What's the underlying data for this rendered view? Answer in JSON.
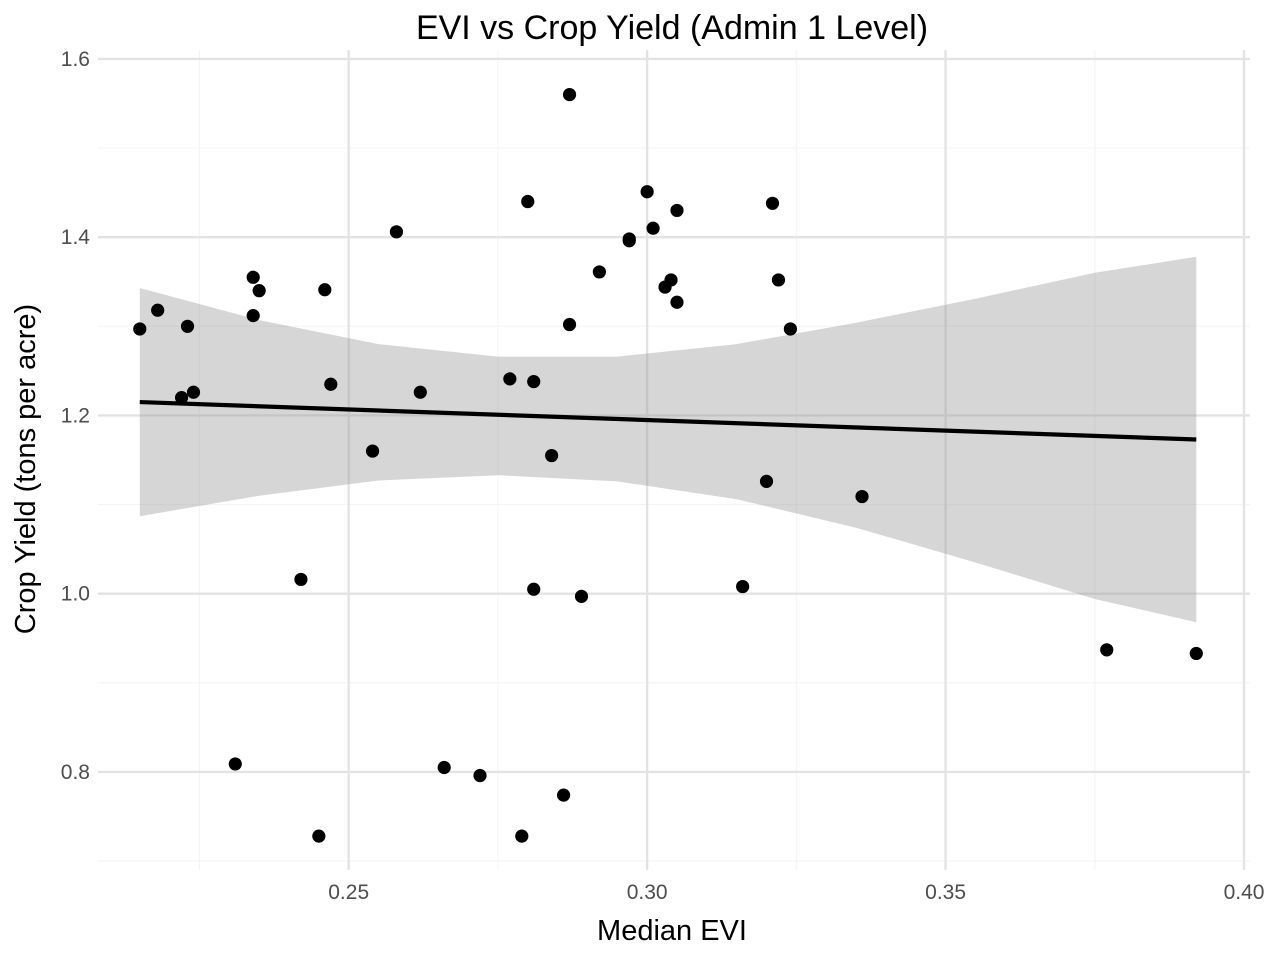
{
  "chart_data": {
    "type": "scatter",
    "title": "EVI vs Crop Yield (Admin 1 Level)",
    "xlabel": "Median EVI",
    "ylabel": "Crop Yield (tons per acre)",
    "xlim": [
      0.208,
      0.401
    ],
    "ylim": [
      0.69,
      1.61
    ],
    "x_ticks": [
      0.25,
      0.3,
      0.35,
      0.4
    ],
    "x_tick_labels": [
      "0.25",
      "0.30",
      "0.35",
      "0.40"
    ],
    "y_ticks": [
      0.8,
      1.0,
      1.2,
      1.4,
      1.6
    ],
    "y_tick_labels": [
      "0.8",
      "1.0",
      "1.2",
      "1.4",
      "1.6"
    ],
    "grid": true,
    "legend": "none",
    "points": [
      {
        "x": 0.215,
        "y": 1.297
      },
      {
        "x": 0.218,
        "y": 1.318
      },
      {
        "x": 0.223,
        "y": 1.3
      },
      {
        "x": 0.222,
        "y": 1.22
      },
      {
        "x": 0.224,
        "y": 1.226
      },
      {
        "x": 0.231,
        "y": 0.809
      },
      {
        "x": 0.234,
        "y": 1.355
      },
      {
        "x": 0.235,
        "y": 1.34
      },
      {
        "x": 0.234,
        "y": 1.312
      },
      {
        "x": 0.242,
        "y": 1.016
      },
      {
        "x": 0.245,
        "y": 0.728
      },
      {
        "x": 0.246,
        "y": 1.341
      },
      {
        "x": 0.247,
        "y": 1.235
      },
      {
        "x": 0.254,
        "y": 1.16
      },
      {
        "x": 0.258,
        "y": 1.406
      },
      {
        "x": 0.262,
        "y": 1.226
      },
      {
        "x": 0.266,
        "y": 0.805
      },
      {
        "x": 0.272,
        "y": 0.796
      },
      {
        "x": 0.277,
        "y": 1.241
      },
      {
        "x": 0.279,
        "y": 0.728
      },
      {
        "x": 0.28,
        "y": 1.44
      },
      {
        "x": 0.281,
        "y": 1.005
      },
      {
        "x": 0.281,
        "y": 1.238
      },
      {
        "x": 0.284,
        "y": 1.155
      },
      {
        "x": 0.286,
        "y": 0.774
      },
      {
        "x": 0.287,
        "y": 1.56
      },
      {
        "x": 0.287,
        "y": 1.302
      },
      {
        "x": 0.289,
        "y": 0.997
      },
      {
        "x": 0.292,
        "y": 1.361
      },
      {
        "x": 0.297,
        "y": 1.396
      },
      {
        "x": 0.297,
        "y": 1.398
      },
      {
        "x": 0.3,
        "y": 1.451
      },
      {
        "x": 0.301,
        "y": 1.41
      },
      {
        "x": 0.303,
        "y": 1.344
      },
      {
        "x": 0.304,
        "y": 1.352
      },
      {
        "x": 0.305,
        "y": 1.43
      },
      {
        "x": 0.305,
        "y": 1.327
      },
      {
        "x": 0.316,
        "y": 1.008
      },
      {
        "x": 0.32,
        "y": 1.126
      },
      {
        "x": 0.321,
        "y": 1.438
      },
      {
        "x": 0.322,
        "y": 1.352
      },
      {
        "x": 0.324,
        "y": 1.297
      },
      {
        "x": 0.336,
        "y": 1.109
      },
      {
        "x": 0.377,
        "y": 0.937
      },
      {
        "x": 0.392,
        "y": 0.933
      }
    ],
    "regression": {
      "x_start": 0.215,
      "x_end": 0.392,
      "y_start": 1.215,
      "y_end": 1.173
    },
    "confidence_band": [
      {
        "x": 0.215,
        "lower": 1.087,
        "upper": 1.343
      },
      {
        "x": 0.235,
        "lower": 1.11,
        "upper": 1.307
      },
      {
        "x": 0.255,
        "lower": 1.127,
        "upper": 1.28
      },
      {
        "x": 0.275,
        "lower": 1.133,
        "upper": 1.266
      },
      {
        "x": 0.295,
        "lower": 1.126,
        "upper": 1.266
      },
      {
        "x": 0.315,
        "lower": 1.106,
        "upper": 1.28
      },
      {
        "x": 0.335,
        "lower": 1.074,
        "upper": 1.304
      },
      {
        "x": 0.355,
        "lower": 1.035,
        "upper": 1.331
      },
      {
        "x": 0.375,
        "lower": 0.994,
        "upper": 1.36
      },
      {
        "x": 0.392,
        "lower": 0.968,
        "upper": 1.378
      }
    ],
    "colors": {
      "point": "#000000",
      "line": "#000000",
      "band": "#999999",
      "band_opacity": 0.4
    }
  }
}
